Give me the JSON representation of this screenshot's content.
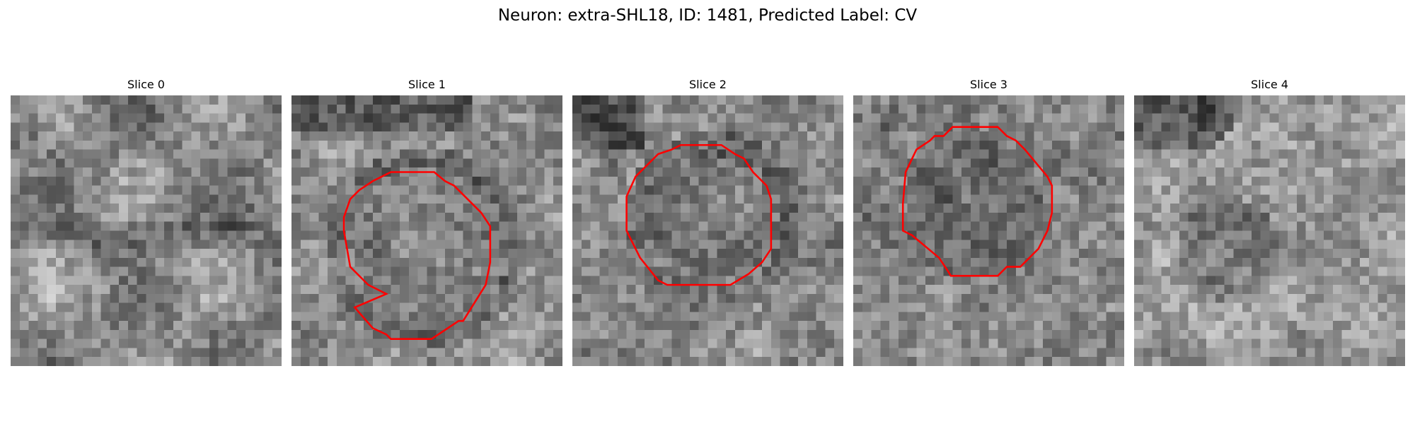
{
  "figure": {
    "title": "Neuron: extra-SHL18, ID: 1481, Predicted Label: CV",
    "contour_color": "#ff0000",
    "panels": [
      {
        "title": "Slice 0",
        "has_contour": false
      },
      {
        "title": "Slice 1",
        "has_contour": true
      },
      {
        "title": "Slice 2",
        "has_contour": true
      },
      {
        "title": "Slice 3",
        "has_contour": true
      },
      {
        "title": "Slice 4",
        "has_contour": false
      }
    ]
  }
}
